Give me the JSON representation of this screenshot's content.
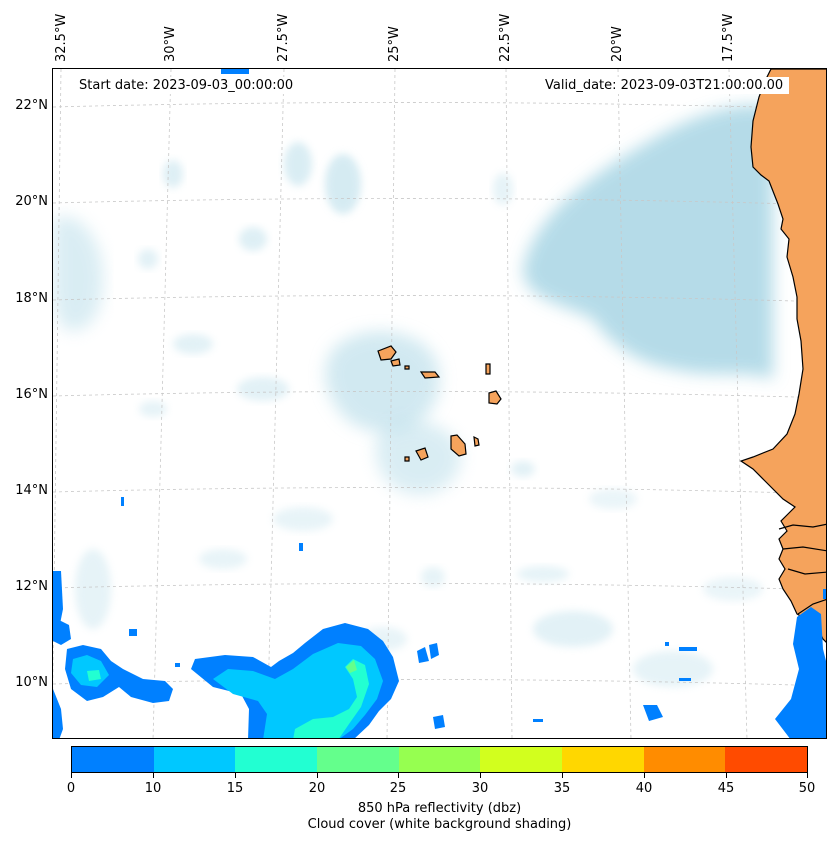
{
  "map": {
    "start_date": "Start date: 2023-09-03_00:00:00",
    "valid_date": "Valid_date: 2023-09-03T21:00:00.00",
    "lon_labels": [
      "32.5°W",
      "30°W",
      "27.5°W",
      "25°W",
      "22.5°W",
      "20°W",
      "17.5°W"
    ],
    "lat_labels": [
      "22°N",
      "20°N",
      "18°N",
      "16°N",
      "14°N",
      "12°N",
      "10°N"
    ],
    "colors": {
      "land": "#f5a35c",
      "cloud": "#add8e6",
      "coastline": "#000000",
      "gridline": "#c8c8c8"
    }
  },
  "colorbar": {
    "ticks": [
      "0",
      "10",
      "15",
      "20",
      "25",
      "30",
      "35",
      "40",
      "45",
      "50"
    ],
    "colors": [
      "#0080ff",
      "#00c8ff",
      "#22ffd2",
      "#64ff8c",
      "#96ff50",
      "#d2ff1e",
      "#ffd700",
      "#ff8c00",
      "#ff4b00"
    ],
    "caption_line1": "850 hPa reflectivity (dbz)",
    "caption_line2": "Cloud cover (white background shading)"
  }
}
